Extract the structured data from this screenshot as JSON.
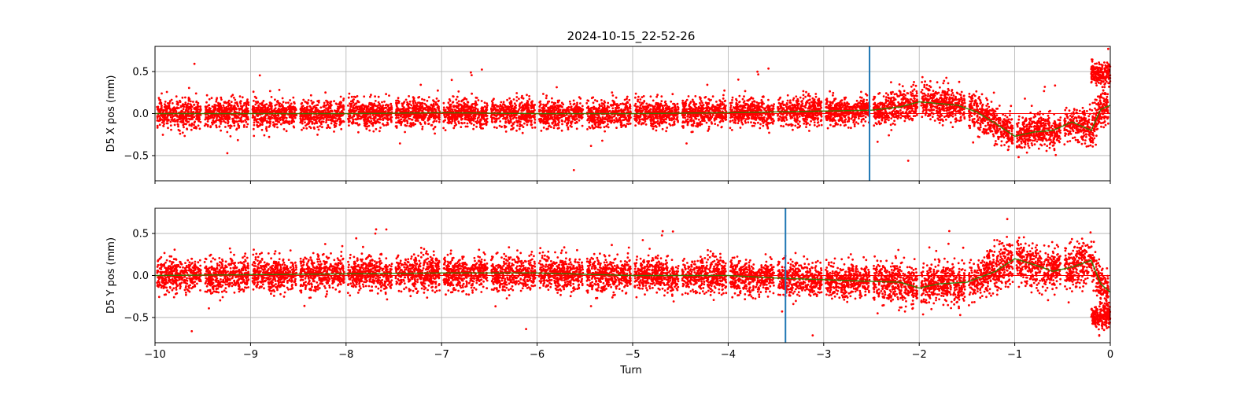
{
  "chart_data": {
    "type": "scatter",
    "title": "2024-10-15_22-52-26",
    "xlabel": "Turn",
    "xlim": [
      -10,
      0
    ],
    "x_ticks": [
      -10,
      -9,
      -8,
      -7,
      -6,
      -5,
      -4,
      -3,
      -2,
      -1,
      0
    ],
    "x_tick_labels": [
      "−10",
      "−9",
      "−8",
      "−7",
      "−6",
      "−5",
      "−4",
      "−3",
      "−2",
      "−1",
      "0"
    ],
    "grid": true,
    "colors": {
      "points": "#ff0000",
      "trend": "#2e7d00",
      "marker": "#1f77b4",
      "zero": "#ff0000",
      "grid": "#b0b0b0"
    },
    "panels": [
      {
        "ylabel": "D5 X pos (mm)",
        "ylim": [
          -0.8,
          0.8
        ],
        "y_ticks": [
          0.5,
          0.0,
          -0.5
        ],
        "y_tick_labels": [
          "0.5",
          "0.0",
          "−0.5"
        ],
        "marker_x": -2.52,
        "noise_sd": 0.08,
        "points_per_segment": 420,
        "trend": [
          [
            -10,
            0.0
          ],
          [
            -9,
            0.0
          ],
          [
            -8,
            0.0
          ],
          [
            -7,
            0.01
          ],
          [
            -6,
            0.0
          ],
          [
            -5,
            0.0
          ],
          [
            -4,
            0.01
          ],
          [
            -3,
            0.03
          ],
          [
            -2.5,
            0.04
          ],
          [
            -2.2,
            0.08
          ],
          [
            -2.0,
            0.14
          ],
          [
            -1.8,
            0.12
          ],
          [
            -1.6,
            0.1
          ],
          [
            -1.4,
            0.02
          ],
          [
            -1.2,
            -0.12
          ],
          [
            -1.0,
            -0.27
          ],
          [
            -0.8,
            -0.22
          ],
          [
            -0.6,
            -0.2
          ],
          [
            -0.4,
            -0.1
          ],
          [
            -0.2,
            -0.2
          ],
          [
            -0.1,
            0.05
          ],
          [
            0,
            0.1
          ]
        ],
        "burst": {
          "x0": -0.2,
          "x1": 0,
          "y": 0.47,
          "sd": 0.07
        }
      },
      {
        "ylabel": "D5 Y pos (mm)",
        "ylim": [
          -0.8,
          0.8
        ],
        "y_ticks": [
          0.5,
          0.0,
          -0.5
        ],
        "y_tick_labels": [
          "0.5",
          "0.0",
          "−0.5"
        ],
        "marker_x": -3.4,
        "noise_sd": 0.1,
        "points_per_segment": 420,
        "trend": [
          [
            -10,
            0.0
          ],
          [
            -9,
            0.01
          ],
          [
            -8,
            0.02
          ],
          [
            -7,
            0.03
          ],
          [
            -6,
            0.03
          ],
          [
            -5,
            0.0
          ],
          [
            -4,
            0.0
          ],
          [
            -3.5,
            -0.03
          ],
          [
            -3,
            -0.05
          ],
          [
            -2.5,
            -0.07
          ],
          [
            -2.2,
            -0.08
          ],
          [
            -2.0,
            -0.15
          ],
          [
            -1.8,
            -0.1
          ],
          [
            -1.5,
            -0.08
          ],
          [
            -1.2,
            0.05
          ],
          [
            -1.0,
            0.2
          ],
          [
            -0.8,
            0.13
          ],
          [
            -0.6,
            0.05
          ],
          [
            -0.4,
            0.1
          ],
          [
            -0.2,
            0.18
          ],
          [
            -0.1,
            -0.1
          ],
          [
            0,
            -0.2
          ]
        ],
        "burst": {
          "x0": -0.2,
          "x1": 0,
          "y": -0.5,
          "sd": 0.07
        }
      }
    ]
  }
}
